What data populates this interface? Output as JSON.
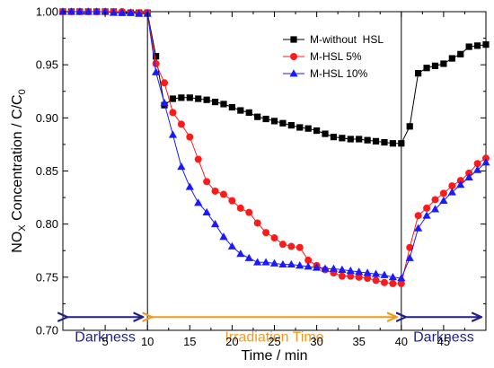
{
  "chart_data": {
    "type": "line",
    "xlabel": "Time / min",
    "ylabel_main": "NO",
    "ylabel_sub": "X",
    "ylabel_rest": " Concentration / C/C",
    "ylabel_sub2": "0",
    "xlim": [
      0,
      50
    ],
    "ylim": [
      0.7,
      1.0
    ],
    "x_ticks": [
      5,
      10,
      15,
      20,
      25,
      30,
      35,
      40,
      45
    ],
    "x_tick_labels": [
      "5",
      "10",
      "15",
      "20",
      "25",
      "30",
      "35",
      "40",
      "45"
    ],
    "y_ticks": [
      0.7,
      0.75,
      0.8,
      0.85,
      0.9,
      0.95,
      1.0
    ],
    "y_tick_labels": [
      "0.70",
      "0.75",
      "0.80",
      "0.85",
      "0.90",
      "0.95",
      "1.00"
    ],
    "legend_position": "top-right",
    "vlines": [
      10,
      40
    ],
    "regions": [
      {
        "label": "Darkness",
        "x_start": 0,
        "x_end": 10,
        "color": "#1f1f8f"
      },
      {
        "label": "Irradiation Time",
        "x_start": 10,
        "x_end": 40,
        "color": "#f39a1e"
      },
      {
        "label": "Darkness",
        "x_start": 40,
        "x_end": 50,
        "color": "#1f1f8f"
      }
    ],
    "series": [
      {
        "name": "M-without  HSL",
        "color": "#000000",
        "marker": "square",
        "points": [
          [
            0,
            1.0
          ],
          [
            1,
            1.0
          ],
          [
            2,
            1.0
          ],
          [
            3,
            1.0
          ],
          [
            4,
            1.0
          ],
          [
            5,
            1.0
          ],
          [
            6,
            1.0
          ],
          [
            7,
            0.999
          ],
          [
            8,
            0.999
          ],
          [
            9,
            0.999
          ],
          [
            10,
            0.999
          ],
          [
            11,
            0.958
          ],
          [
            12,
            0.912
          ],
          [
            13,
            0.918
          ],
          [
            14,
            0.919
          ],
          [
            15,
            0.919
          ],
          [
            16,
            0.918
          ],
          [
            17,
            0.917
          ],
          [
            18,
            0.915
          ],
          [
            19,
            0.913
          ],
          [
            20,
            0.91
          ],
          [
            21,
            0.907
          ],
          [
            22,
            0.905
          ],
          [
            23,
            0.901
          ],
          [
            24,
            0.899
          ],
          [
            25,
            0.897
          ],
          [
            26,
            0.895
          ],
          [
            27,
            0.893
          ],
          [
            28,
            0.891
          ],
          [
            29,
            0.89
          ],
          [
            30,
            0.888
          ],
          [
            31,
            0.885
          ],
          [
            32,
            0.882
          ],
          [
            33,
            0.881
          ],
          [
            34,
            0.88
          ],
          [
            35,
            0.88
          ],
          [
            36,
            0.879
          ],
          [
            37,
            0.878
          ],
          [
            38,
            0.877
          ],
          [
            39,
            0.876
          ],
          [
            40,
            0.876
          ],
          [
            41,
            0.892
          ],
          [
            42,
            0.942
          ],
          [
            43,
            0.947
          ],
          [
            44,
            0.949
          ],
          [
            45,
            0.951
          ],
          [
            46,
            0.956
          ],
          [
            47,
            0.96
          ],
          [
            48,
            0.967
          ],
          [
            49,
            0.968
          ],
          [
            50,
            0.969
          ]
        ]
      },
      {
        "name": "M-HSL 5%",
        "color": "#ff1a1a",
        "marker": "circle",
        "points": [
          [
            0,
            1.0
          ],
          [
            1,
            1.0
          ],
          [
            2,
            1.0
          ],
          [
            3,
            1.0
          ],
          [
            4,
            1.0
          ],
          [
            5,
            1.0
          ],
          [
            6,
            1.0
          ],
          [
            7,
            1.0
          ],
          [
            8,
            0.999
          ],
          [
            9,
            0.999
          ],
          [
            10,
            0.999
          ],
          [
            11,
            0.951
          ],
          [
            12,
            0.933
          ],
          [
            13,
            0.905
          ],
          [
            14,
            0.894
          ],
          [
            15,
            0.882
          ],
          [
            16,
            0.861
          ],
          [
            17,
            0.84
          ],
          [
            18,
            0.831
          ],
          [
            19,
            0.828
          ],
          [
            20,
            0.822
          ],
          [
            21,
            0.815
          ],
          [
            22,
            0.811
          ],
          [
            23,
            0.801
          ],
          [
            24,
            0.792
          ],
          [
            25,
            0.787
          ],
          [
            26,
            0.781
          ],
          [
            27,
            0.779
          ],
          [
            28,
            0.778
          ],
          [
            29,
            0.766
          ],
          [
            30,
            0.761
          ],
          [
            31,
            0.757
          ],
          [
            32,
            0.754
          ],
          [
            33,
            0.751
          ],
          [
            34,
            0.751
          ],
          [
            35,
            0.75
          ],
          [
            36,
            0.749
          ],
          [
            37,
            0.747
          ],
          [
            38,
            0.745
          ],
          [
            39,
            0.744
          ],
          [
            40,
            0.744
          ],
          [
            41,
            0.778
          ],
          [
            42,
            0.808
          ],
          [
            43,
            0.815
          ],
          [
            44,
            0.823
          ],
          [
            45,
            0.829
          ],
          [
            46,
            0.836
          ],
          [
            47,
            0.841
          ],
          [
            48,
            0.848
          ],
          [
            49,
            0.857
          ],
          [
            50,
            0.862
          ]
        ]
      },
      {
        "name": "M-HSL 10%",
        "color": "#1a1aff",
        "marker": "triangle",
        "points": [
          [
            0,
            1.0
          ],
          [
            1,
            1.0
          ],
          [
            2,
            1.0
          ],
          [
            3,
            1.0
          ],
          [
            4,
            1.0
          ],
          [
            5,
            1.0
          ],
          [
            6,
            0.999
          ],
          [
            7,
            0.999
          ],
          [
            8,
            0.999
          ],
          [
            9,
            0.998
          ],
          [
            10,
            0.998
          ],
          [
            11,
            0.943
          ],
          [
            12,
            0.914
          ],
          [
            13,
            0.884
          ],
          [
            14,
            0.854
          ],
          [
            15,
            0.835
          ],
          [
            16,
            0.82
          ],
          [
            17,
            0.811
          ],
          [
            18,
            0.8
          ],
          [
            19,
            0.788
          ],
          [
            20,
            0.779
          ],
          [
            21,
            0.772
          ],
          [
            22,
            0.768
          ],
          [
            23,
            0.764
          ],
          [
            24,
            0.764
          ],
          [
            25,
            0.763
          ],
          [
            26,
            0.762
          ],
          [
            27,
            0.762
          ],
          [
            28,
            0.761
          ],
          [
            29,
            0.76
          ],
          [
            30,
            0.759
          ],
          [
            31,
            0.758
          ],
          [
            32,
            0.758
          ],
          [
            33,
            0.757
          ],
          [
            34,
            0.756
          ],
          [
            35,
            0.755
          ],
          [
            36,
            0.754
          ],
          [
            37,
            0.753
          ],
          [
            38,
            0.752
          ],
          [
            39,
            0.75
          ],
          [
            40,
            0.749
          ],
          [
            41,
            0.768
          ],
          [
            42,
            0.796
          ],
          [
            43,
            0.808
          ],
          [
            44,
            0.814
          ],
          [
            45,
            0.822
          ],
          [
            46,
            0.83
          ],
          [
            47,
            0.837
          ],
          [
            48,
            0.844
          ],
          [
            49,
            0.851
          ],
          [
            50,
            0.858
          ]
        ]
      }
    ]
  }
}
